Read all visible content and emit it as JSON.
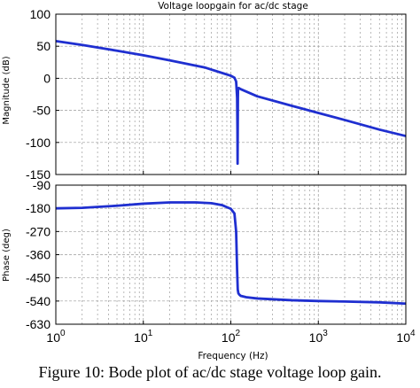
{
  "caption": "Figure 10: Bode plot of ac/dc stage voltage loop gain.",
  "colors": {
    "trace": "#1f2fd0",
    "grid": "#9a9a9a",
    "axes": "#000000",
    "background": "#ffffff"
  },
  "chart_data": [
    {
      "type": "line",
      "title": "Voltage loopgain for ac/dc stage",
      "xlabel": "",
      "ylabel": "Magnitude (dB)",
      "xscale": "log",
      "xlim": [
        1,
        10000
      ],
      "ylim": [
        -150,
        100
      ],
      "yticks": [
        100,
        50,
        0,
        -50,
        -100,
        -150
      ],
      "grid": true,
      "series": [
        {
          "x": [
            1,
            2,
            5,
            10,
            20,
            50,
            100,
            110,
            115,
            118,
            119,
            119.5,
            120,
            120.5,
            121,
            123,
            130,
            200,
            500,
            1000,
            2000,
            5000,
            10000
          ],
          "y": [
            58,
            52,
            43,
            36,
            28,
            17,
            4,
            1,
            -5,
            -30,
            -80,
            -133,
            -80,
            -30,
            -16,
            -15,
            -17,
            -28,
            -43,
            -54,
            -65,
            -80,
            -90
          ]
        }
      ]
    },
    {
      "type": "line",
      "title": "",
      "xlabel": "Frequency (Hz)",
      "ylabel": "Phase (deg)",
      "xscale": "log",
      "xlim": [
        1,
        10000
      ],
      "ylim": [
        -630,
        -90
      ],
      "yticks": [
        -90,
        -180,
        -270,
        -360,
        -450,
        -540,
        -630
      ],
      "grid": true,
      "series": [
        {
          "x": [
            1,
            2,
            5,
            10,
            20,
            40,
            60,
            80,
            100,
            110,
            115,
            118,
            120,
            122,
            125,
            130,
            150,
            200,
            500,
            1000,
            2000,
            5000,
            10000
          ],
          "y": [
            -180,
            -178,
            -170,
            -162,
            -157,
            -157,
            -160,
            -168,
            -182,
            -200,
            -270,
            -420,
            -495,
            -510,
            -515,
            -520,
            -525,
            -530,
            -537,
            -540,
            -542,
            -545,
            -550
          ]
        }
      ]
    }
  ]
}
